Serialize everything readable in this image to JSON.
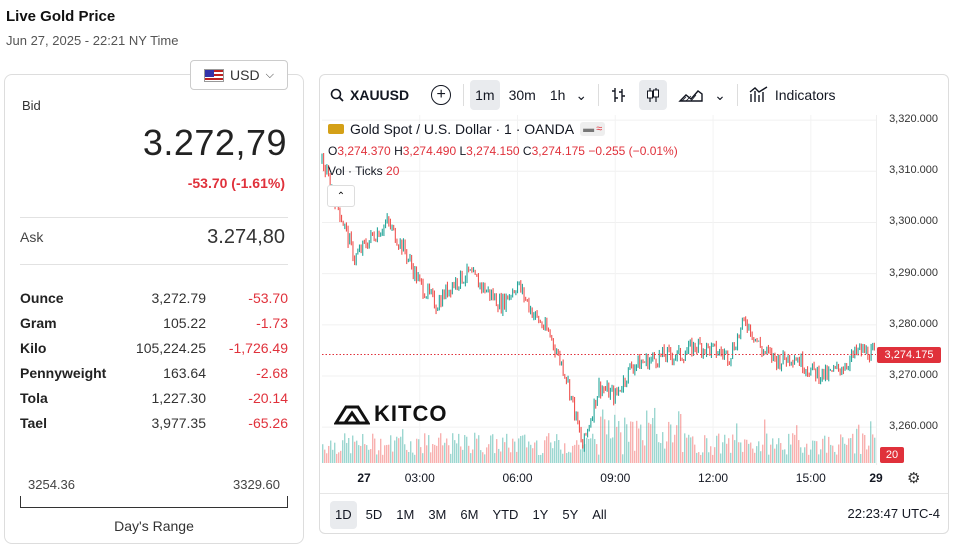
{
  "header": {
    "title": "Live Gold Price",
    "datetime": "Jun 27, 2025 - 22:21 NY Time"
  },
  "currency": {
    "label": "USD",
    "icon": "us-flag-icon"
  },
  "bid": {
    "label": "Bid",
    "value": "3.272,79",
    "change": "-53.70 (-1.61%)"
  },
  "ask": {
    "label": "Ask",
    "value": "3.274,80"
  },
  "units": [
    {
      "name": "Ounce",
      "price": "3,272.79",
      "change": "-53.70"
    },
    {
      "name": "Gram",
      "price": "105.22",
      "change": "-1.73"
    },
    {
      "name": "Kilo",
      "price": "105,224.25",
      "change": "-1,726.49"
    },
    {
      "name": "Pennyweight",
      "price": "163.64",
      "change": "-2.68"
    },
    {
      "name": "Tola",
      "price": "1,227.30",
      "change": "-20.14"
    },
    {
      "name": "Tael",
      "price": "3,977.35",
      "change": "-65.26"
    }
  ],
  "range": {
    "low": "3254.36",
    "high": "3329.60",
    "label": "Day's Range"
  },
  "chart": {
    "symbol": "XAUUSD",
    "intervals": [
      "1m",
      "30m",
      "1h"
    ],
    "active_interval": "1m",
    "indicators_label": "Indicators",
    "legend_title": "Gold Spot / U.S. Dollar · 1 · OANDA",
    "ohlc": {
      "o_label": "O",
      "o": "3,274.370",
      "h_label": "H",
      "h": "3,274.490",
      "l_label": "L",
      "l": "3,274.150",
      "c_label": "C",
      "c": "3,274.175",
      "chg": "−0.255 (−0.01%)"
    },
    "vol_label": "Vol · Ticks",
    "vol_value": "20",
    "price_label": "3,274.175",
    "vol_tag": "20",
    "ranges": [
      "1D",
      "5D",
      "1M",
      "3M",
      "6M",
      "YTD",
      "1Y",
      "5Y",
      "All"
    ],
    "active_range": "1D",
    "clock": "22:23:47 UTC-4",
    "brand": "KITCO",
    "colors": {
      "up": "#26a69a",
      "down": "#ef5350",
      "accent": "#e0313b"
    }
  },
  "chart_data": {
    "type": "line",
    "title": "Gold Spot / U.S. Dollar · 1 · OANDA",
    "x_ticks": [
      "27",
      "03:00",
      "06:00",
      "09:00",
      "12:00",
      "15:00",
      "29"
    ],
    "y_ticks": [
      "3,320.000",
      "3,310.000",
      "3,300.000",
      "3,290.000",
      "3,280.000",
      "3,270.000",
      "3,260.000"
    ],
    "ylim": [
      3253,
      3321
    ],
    "grid": true,
    "series": [
      {
        "x": [
          0,
          0.5,
          1,
          1.5,
          2,
          2.5,
          3,
          3.5,
          4,
          4.5,
          5,
          5.5,
          6,
          6.5,
          7,
          7.5,
          8,
          8.5,
          9,
          9.5,
          10,
          10.5,
          11,
          11.5,
          12,
          12.5,
          13,
          13.5,
          14,
          14.5,
          15,
          15.5,
          16,
          16.5,
          17
        ],
        "y": [
          3312,
          3303,
          3293,
          3297,
          3300,
          3295,
          3288,
          3284,
          3288,
          3290,
          3287,
          3284,
          3288,
          3282,
          3278,
          3270,
          3256,
          3268,
          3266,
          3272,
          3273,
          3274,
          3274,
          3276,
          3275,
          3274,
          3281,
          3275,
          3273,
          3274,
          3271,
          3270,
          3272,
          3275,
          3274.2
        ]
      }
    ]
  }
}
